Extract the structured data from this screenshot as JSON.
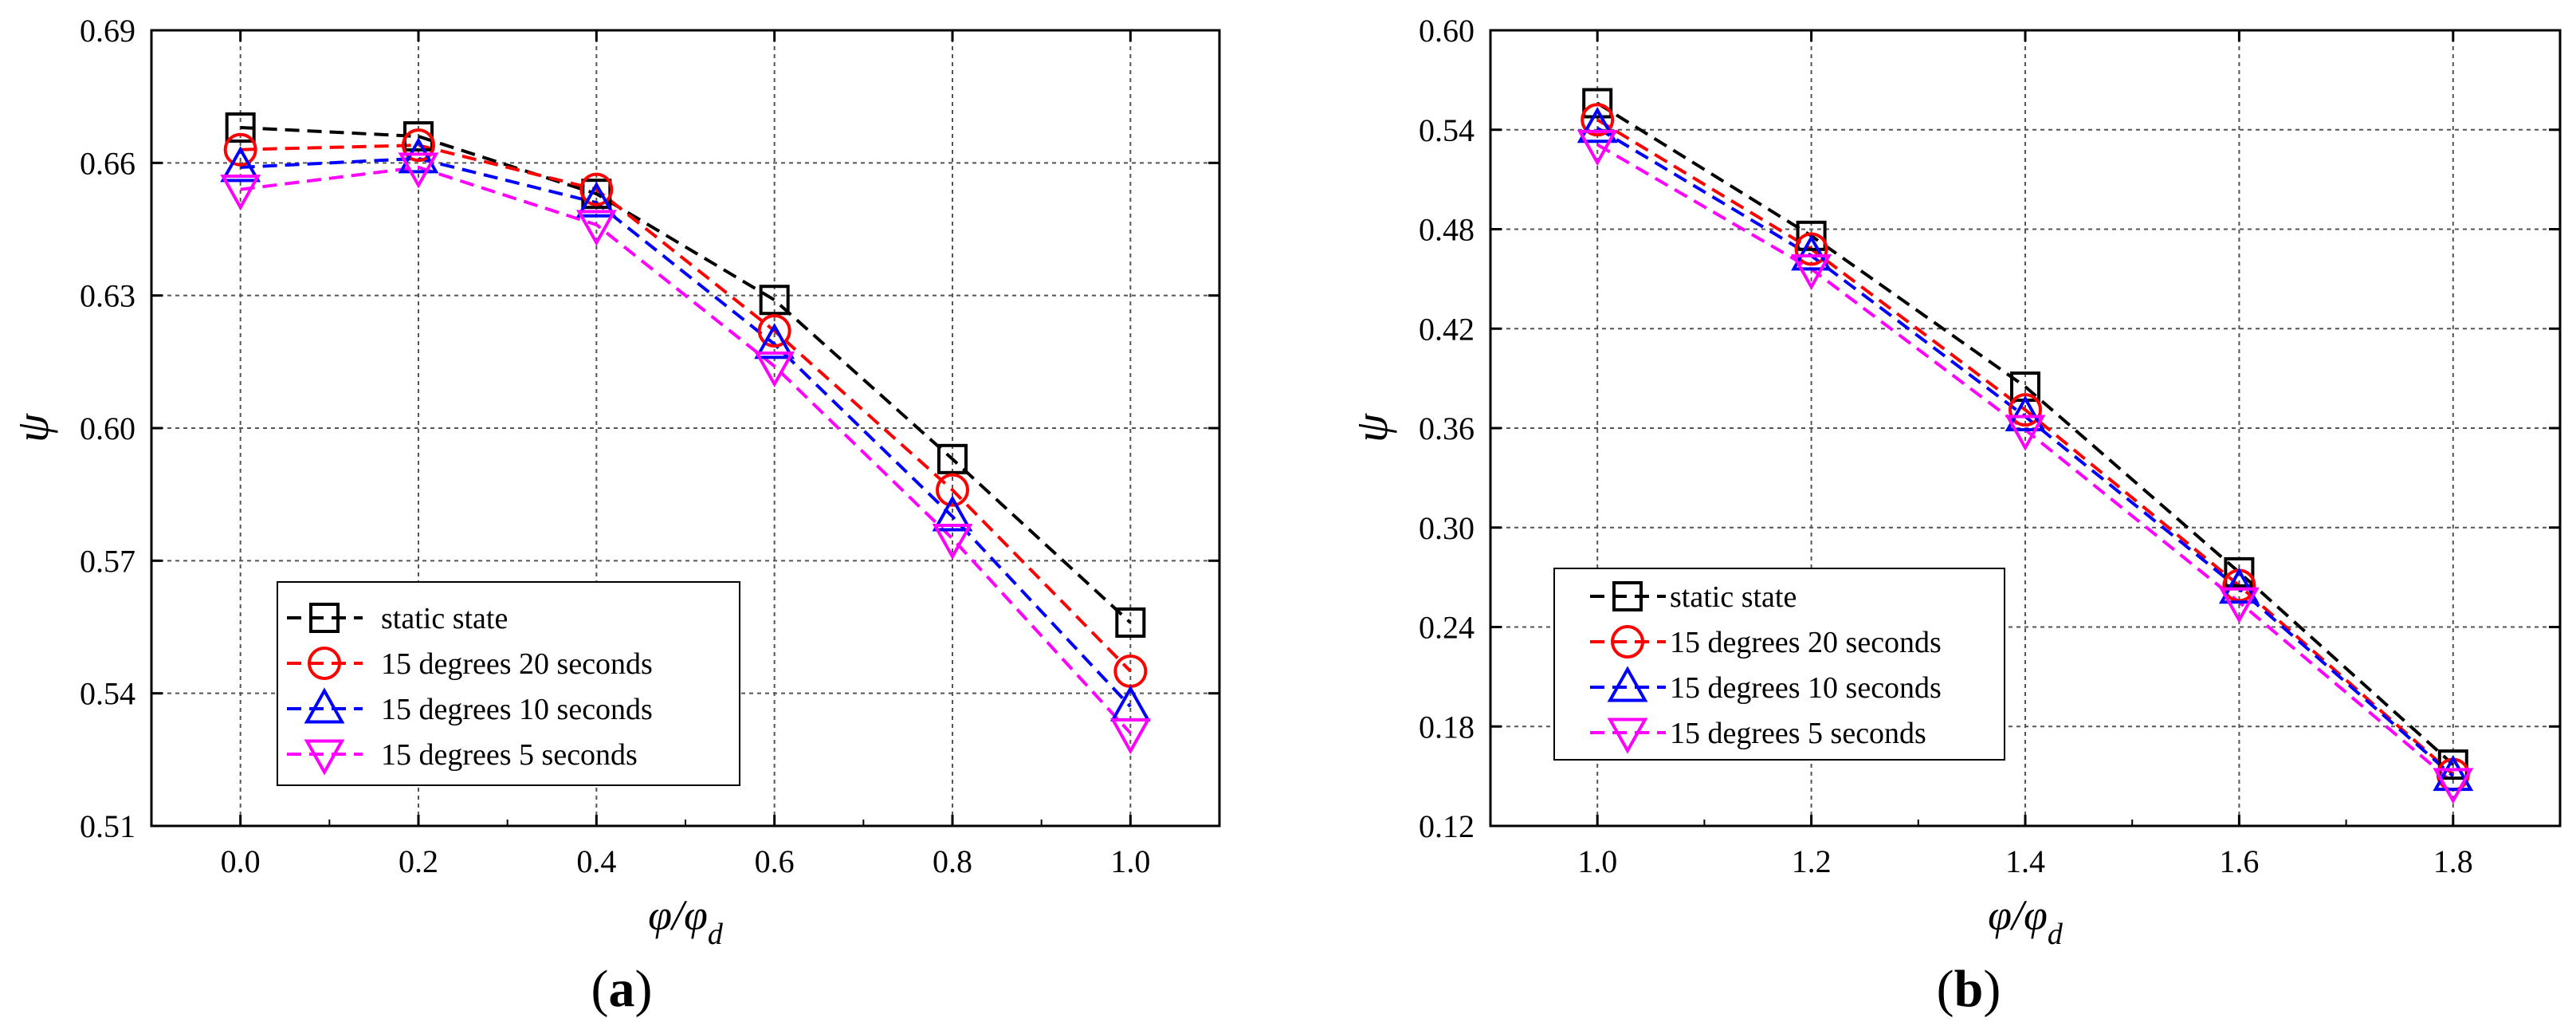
{
  "chart_data": [
    {
      "type": "line",
      "panel_label": "a",
      "title": "",
      "xlabel": "φ/φ",
      "xlabel_sub": "d",
      "ylabel": "ψ",
      "xlim": [
        -0.1,
        1.1
      ],
      "ylim": [
        0.51,
        0.69
      ],
      "xticks": [
        0.0,
        0.2,
        0.4,
        0.6,
        0.8,
        1.0
      ],
      "xtick_labels": [
        "0.0",
        "0.2",
        "0.4",
        "0.6",
        "0.8",
        "1.0"
      ],
      "yticks": [
        0.51,
        0.54,
        0.57,
        0.6,
        0.63,
        0.66,
        0.69
      ],
      "ytick_labels": [
        "0.51",
        "0.54",
        "0.57",
        "0.60",
        "0.63",
        "0.66",
        "0.69"
      ],
      "grid": true,
      "legend_position": "bottom-left",
      "x": [
        0.0,
        0.2,
        0.4,
        0.6,
        0.8,
        1.0
      ],
      "series": [
        {
          "name": "static state",
          "color": "#000000",
          "marker": "square",
          "values": [
            0.668,
            0.666,
            0.653,
            0.629,
            0.593,
            0.556
          ]
        },
        {
          "name": "15 degrees 20 seconds",
          "color": "#ff0000",
          "marker": "circle",
          "values": [
            0.663,
            0.664,
            0.654,
            0.622,
            0.586,
            0.545
          ]
        },
        {
          "name": "15 degrees 10 seconds",
          "color": "#0000ff",
          "marker": "triangle-up",
          "values": [
            0.659,
            0.661,
            0.651,
            0.619,
            0.58,
            0.537
          ]
        },
        {
          "name": "15 degrees 5 seconds",
          "color": "#ff00ff",
          "marker": "triangle-down",
          "values": [
            0.654,
            0.659,
            0.646,
            0.614,
            0.575,
            0.531
          ]
        }
      ]
    },
    {
      "type": "line",
      "panel_label": "b",
      "title": "",
      "xlabel": "φ/φ",
      "xlabel_sub": "d",
      "ylabel": "ψ",
      "xlim": [
        0.9,
        1.9
      ],
      "ylim": [
        0.12,
        0.6
      ],
      "xticks": [
        1.0,
        1.2,
        1.4,
        1.6,
        1.8
      ],
      "xtick_labels": [
        "1.0",
        "1.2",
        "1.4",
        "1.6",
        "1.8"
      ],
      "yticks": [
        0.12,
        0.18,
        0.24,
        0.3,
        0.36,
        0.42,
        0.48,
        0.54,
        0.6
      ],
      "ytick_labels": [
        "0.12",
        "0.18",
        "0.24",
        "0.30",
        "0.36",
        "0.42",
        "0.48",
        "0.54",
        "0.60"
      ],
      "grid": true,
      "legend_position": "bottom-left",
      "x": [
        1.0,
        1.2,
        1.4,
        1.6,
        1.8
      ],
      "series": [
        {
          "name": "static state",
          "color": "#000000",
          "marker": "square",
          "values": [
            0.556,
            0.476,
            0.385,
            0.273,
            0.157
          ]
        },
        {
          "name": "15 degrees 20 seconds",
          "color": "#ff0000",
          "marker": "circle",
          "values": [
            0.546,
            0.468,
            0.371,
            0.265,
            0.151
          ]
        },
        {
          "name": "15 degrees 10 seconds",
          "color": "#0000ff",
          "marker": "triangle-up",
          "values": [
            0.541,
            0.464,
            0.367,
            0.263,
            0.15
          ]
        },
        {
          "name": "15 degrees 5 seconds",
          "color": "#ff00ff",
          "marker": "triangle-down",
          "values": [
            0.531,
            0.456,
            0.359,
            0.255,
            0.146
          ]
        }
      ]
    }
  ]
}
